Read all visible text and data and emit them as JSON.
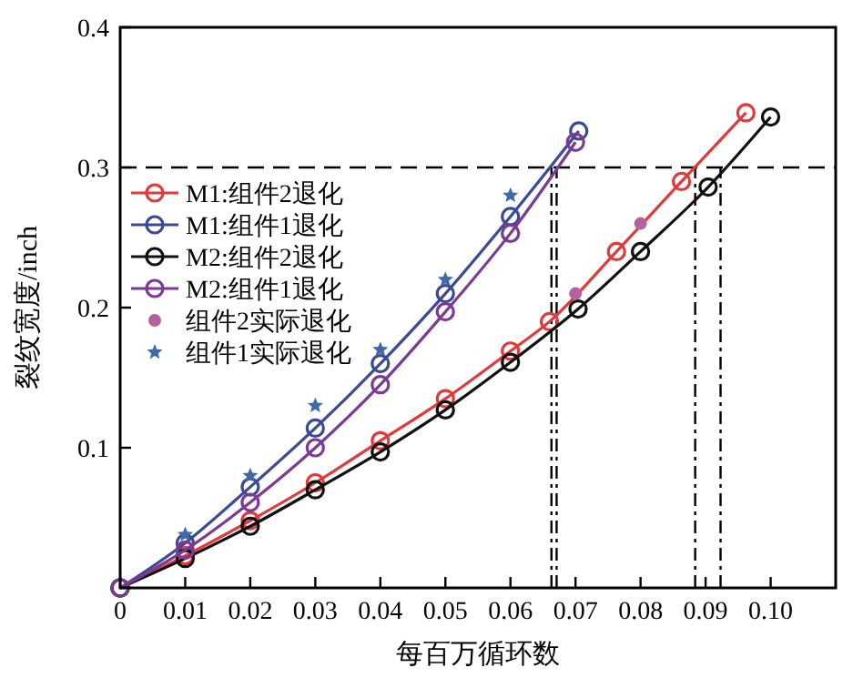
{
  "chart_data": {
    "type": "line",
    "xlabel": "每百万循环数",
    "ylabel": "裂纹宽度/inch",
    "xlim": [
      0,
      0.11
    ],
    "ylim": [
      0,
      0.4
    ],
    "xticks": [
      {
        "value": 0,
        "label": "0"
      },
      0.01,
      0.02,
      0.03,
      0.04,
      0.05,
      0.06,
      0.07,
      0.08,
      0.09,
      {
        "value": 0.1,
        "label": "0.10"
      }
    ],
    "yticks": [
      {
        "value": 0,
        "label": null
      },
      0.1,
      0.2,
      0.3,
      0.4
    ],
    "grid": false,
    "legend": "top left",
    "marker": "circle",
    "line_style": "solid",
    "ref_lines": [
      {
        "axis": "y",
        "value": 0.3,
        "line_style": "dashed",
        "color": "#000000"
      },
      {
        "axis": "x",
        "value": 0.0663,
        "line_style": "dashdot",
        "color": "#000000"
      },
      {
        "axis": "x",
        "value": 0.0671,
        "line_style": "dashdot",
        "color": "#000000"
      },
      {
        "axis": "x",
        "value": 0.0884,
        "line_style": "dashdot",
        "color": "#000000"
      },
      {
        "axis": "x",
        "value": 0.0923,
        "line_style": "dashdot",
        "color": "#000000"
      }
    ],
    "series": [
      {
        "name": "M1:组件2退化",
        "color": "#e23a3a",
        "x": [
          0,
          0.01,
          0.02,
          0.03,
          0.04,
          0.05,
          0.06,
          0.066,
          0.0763,
          0.0863,
          0.0962
        ],
        "values": [
          0,
          0.023,
          0.048,
          0.075,
          0.105,
          0.135,
          0.169,
          0.19,
          0.24,
          0.29,
          0.339
        ]
      },
      {
        "name": "M1:组件1退化",
        "color": "#3c4a96",
        "x": [
          0,
          0.01,
          0.02,
          0.03,
          0.04,
          0.05,
          0.06,
          0.0705
        ],
        "values": [
          0,
          0.032,
          0.072,
          0.114,
          0.16,
          0.21,
          0.265,
          0.326
        ]
      },
      {
        "name": "M2:组件2退化",
        "color": "#111111",
        "x": [
          0,
          0.01,
          0.02,
          0.03,
          0.04,
          0.05,
          0.06,
          0.0704,
          0.08,
          0.0904,
          0.1
        ],
        "values": [
          0,
          0.021,
          0.044,
          0.07,
          0.097,
          0.127,
          0.161,
          0.199,
          0.24,
          0.286,
          0.336
        ]
      },
      {
        "name": "M2:组件1退化",
        "color": "#7a3a96",
        "x": [
          0,
          0.01,
          0.02,
          0.03,
          0.04,
          0.05,
          0.06,
          0.07
        ],
        "values": [
          0,
          0.027,
          0.061,
          0.1,
          0.145,
          0.197,
          0.253,
          0.318
        ]
      },
      {
        "name": "组件2实际退化",
        "type": "scatter",
        "marker": "circle",
        "color": "#b5609f",
        "x": [
          0.07,
          0.08
        ],
        "values": [
          0.21,
          0.26
        ]
      },
      {
        "name": "组件1实际退化",
        "type": "scatter",
        "marker": "star",
        "color": "#3e6aa8",
        "x": [
          0.01,
          0.02,
          0.03,
          0.04,
          0.05,
          0.06
        ],
        "values": [
          0.038,
          0.08,
          0.13,
          0.17,
          0.22,
          0.28
        ]
      }
    ]
  }
}
